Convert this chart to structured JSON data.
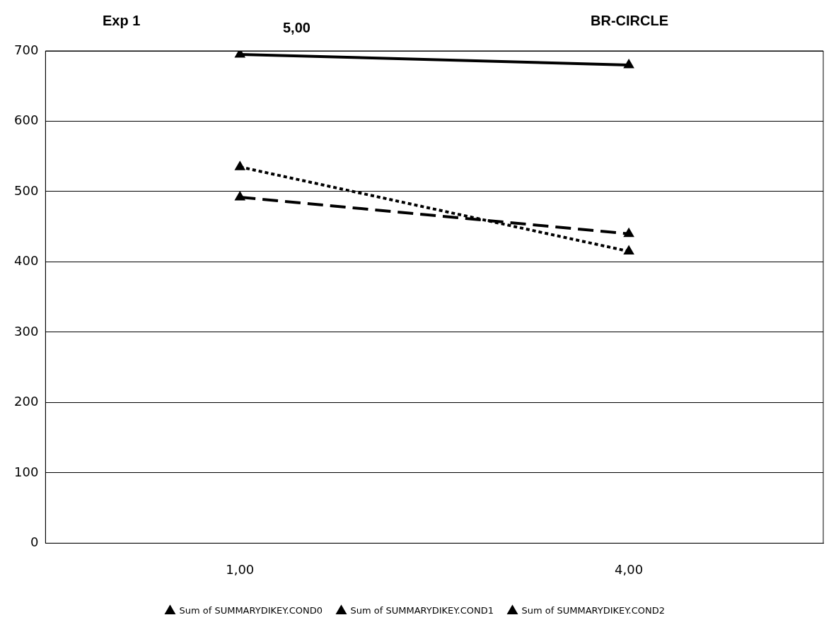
{
  "chart_data": {
    "type": "line",
    "categories": [
      "1,00",
      "4,00"
    ],
    "series": [
      {
        "name": "Sum of SUMMARYDIKEY.COND0",
        "color": "#000000",
        "values": [
          695,
          680
        ],
        "line_style": "solid"
      },
      {
        "name": "Sum of SUMMARYDIKEY.COND1",
        "color": "#000000",
        "values": [
          535,
          415
        ],
        "line_style": "dotted"
      },
      {
        "name": "Sum of SUMMARYDIKEY.COND2",
        "color": "#000000",
        "values": [
          492,
          440
        ],
        "line_style": "dashed"
      }
    ],
    "ylim": [
      0,
      700
    ],
    "yticks": [
      0,
      100,
      200,
      300,
      400,
      500,
      600,
      700
    ],
    "grid": "y",
    "legend": "bottom",
    "marker": "triangle",
    "annotations": [
      "Exp 1",
      "5,00",
      "BR-CIRCLE"
    ]
  }
}
